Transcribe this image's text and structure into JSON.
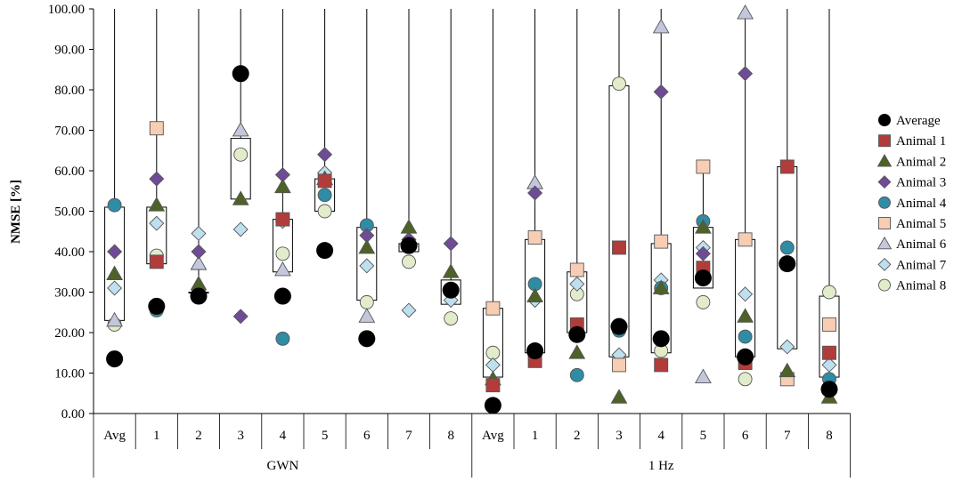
{
  "chart_data": {
    "type": "scatter",
    "ylabel": "NMSE [%]",
    "ylim": [
      0,
      100
    ],
    "yticks": [
      "0.00",
      "10.00",
      "20.00",
      "30.00",
      "40.00",
      "50.00",
      "60.00",
      "70.00",
      "80.00",
      "90.00",
      "100.00"
    ],
    "categories": [
      "Avg",
      "1",
      "2",
      "3",
      "4",
      "5",
      "6",
      "7",
      "8",
      "Avg",
      "1",
      "2",
      "3",
      "4",
      "5",
      "6",
      "7",
      "8"
    ],
    "groups": [
      {
        "label": "GWN",
        "span": [
          0,
          8
        ]
      },
      {
        "label": "1 Hz",
        "span": [
          9,
          17
        ]
      }
    ],
    "grid": false,
    "legend_position": "right",
    "whisker_top": [
      100,
      100,
      100,
      100,
      100,
      100,
      100,
      100,
      100,
      100,
      100,
      100,
      100,
      100,
      60,
      100,
      100,
      100
    ],
    "box_low": [
      23,
      37,
      30,
      53,
      35,
      50,
      28,
      40,
      27,
      9,
      15,
      20,
      14,
      15,
      31,
      14,
      16,
      9
    ],
    "box_high": [
      51,
      51,
      30,
      68,
      48,
      58,
      46,
      42,
      33,
      26,
      43,
      35,
      81,
      42,
      46,
      43,
      61,
      29
    ],
    "series": [
      {
        "name": "Average",
        "color": "#000000",
        "shape": "circle",
        "values": [
          13.5,
          26.5,
          29,
          84,
          29,
          40.3,
          18.5,
          41.5,
          30.5,
          2,
          15.5,
          19.5,
          21.5,
          18.5,
          33.5,
          14,
          37,
          6
        ]
      },
      {
        "name": "Animal 1",
        "color": "#b23c3a",
        "shape": "square",
        "values": [
          null,
          37.5,
          null,
          null,
          48,
          57.5,
          null,
          null,
          null,
          7,
          13,
          22,
          41,
          12,
          36,
          12.5,
          61,
          15
        ]
      },
      {
        "name": "Animal 2",
        "color": "#4e6228",
        "shape": "triangle",
        "values": [
          34.5,
          51.5,
          32,
          53,
          56,
          58,
          41,
          46,
          35,
          8.5,
          29,
          15,
          4,
          31,
          46,
          24,
          10.5,
          4
        ]
      },
      {
        "name": "Animal 3",
        "color": "#6f4b97",
        "shape": "diamond",
        "values": [
          40,
          58,
          40,
          24,
          59,
          64,
          44,
          43,
          42,
          null,
          54.5,
          null,
          null,
          79.5,
          39.5,
          84,
          null,
          null
        ]
      },
      {
        "name": "Animal 4",
        "color": "#2f8ca5",
        "shape": "circle",
        "values": [
          51.5,
          25.5,
          null,
          null,
          18.5,
          54,
          46.5,
          null,
          null,
          null,
          32,
          9.5,
          20.5,
          31,
          47.5,
          19,
          41,
          8.5
        ]
      },
      {
        "name": "Animal 5",
        "color": "#f7cdb4",
        "shape": "square",
        "values": [
          null,
          70.5,
          null,
          null,
          null,
          null,
          null,
          null,
          null,
          26,
          43.5,
          35.5,
          12,
          42.5,
          61,
          43,
          8.5,
          22
        ]
      },
      {
        "name": "Animal 6",
        "color": "#c4c7dc",
        "shape": "triangle",
        "values": [
          23,
          null,
          37,
          70,
          35.5,
          58,
          24,
          null,
          null,
          null,
          57,
          null,
          null,
          95.5,
          9,
          99,
          null,
          null
        ]
      },
      {
        "name": "Animal 7",
        "color": "#bee0ee",
        "shape": "diamond",
        "values": [
          31,
          47,
          44.5,
          45.5,
          47.5,
          59.5,
          36.5,
          25.5,
          28,
          12,
          28,
          32,
          14.5,
          33,
          41,
          29.5,
          16.5,
          12
        ]
      },
      {
        "name": "Animal 8",
        "color": "#e2ecca",
        "shape": "circle",
        "values": [
          22,
          39,
          30,
          64,
          39.5,
          50,
          27.5,
          37.5,
          23.5,
          15,
          14,
          29.5,
          81.5,
          15.5,
          27.5,
          8.5,
          null,
          30
        ]
      }
    ]
  }
}
